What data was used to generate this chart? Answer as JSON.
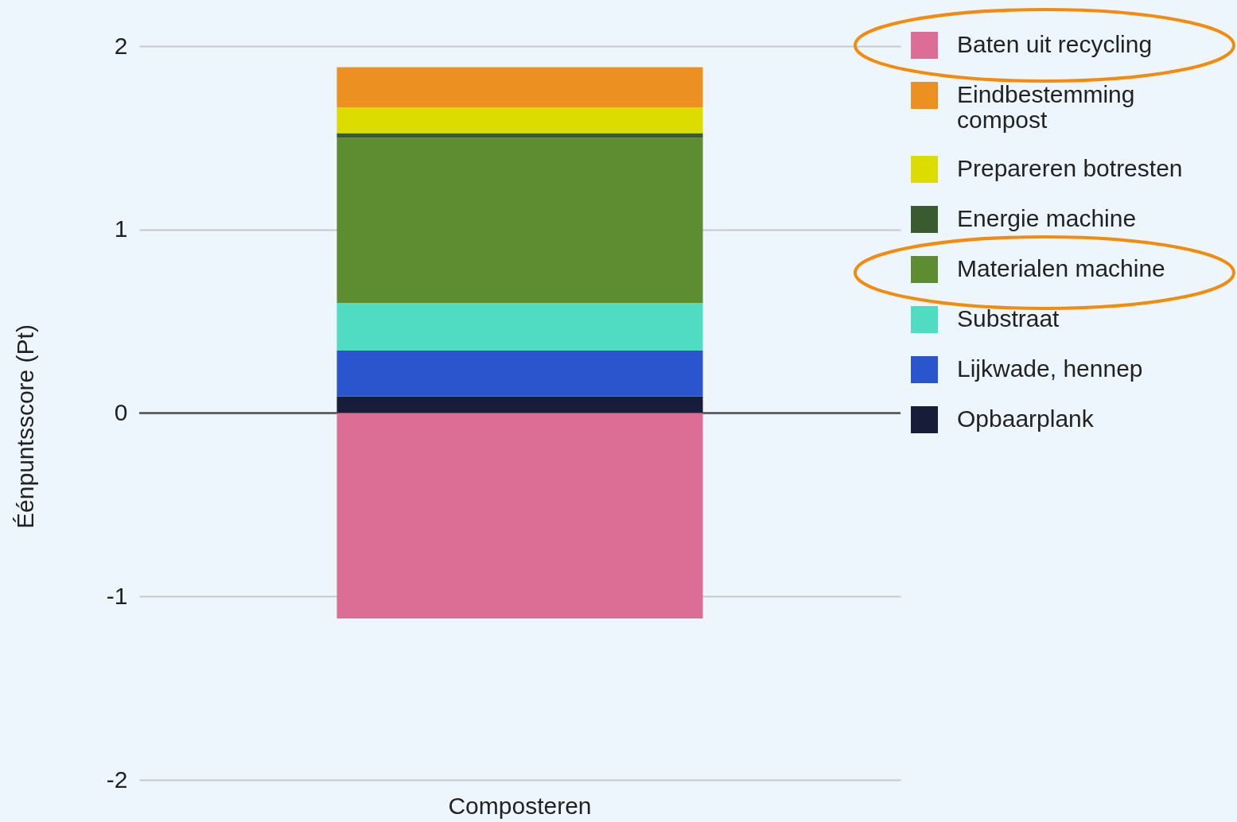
{
  "chart_data": {
    "type": "bar",
    "stacked": true,
    "categories": [
      "Composteren"
    ],
    "ylabel": "Éénpuntsscore (Pt)",
    "series": [
      {
        "name": "Opbaarplank",
        "color": "#171c38",
        "values": [
          0.09
        ]
      },
      {
        "name": "Lijkwade, hennep",
        "color": "#2b55cc",
        "values": [
          0.25
        ]
      },
      {
        "name": "Substraat",
        "color": "#50dbc3",
        "values": [
          0.26
        ]
      },
      {
        "name": "Materialen machine",
        "color": "#5e8c31",
        "values": [
          0.9
        ]
      },
      {
        "name": "Energie machine",
        "color": "#3a5a30",
        "values": [
          0.025
        ]
      },
      {
        "name": "Prepareren botresten",
        "color": "#dcdc00",
        "values": [
          0.14
        ]
      },
      {
        "name": "Eindbestemming compost",
        "color": "#ec9022",
        "values": [
          0.22
        ]
      },
      {
        "name": "Baten uit recycling",
        "color": "#dc6e96",
        "values": [
          -1.12
        ]
      }
    ],
    "ylim": [
      -2,
      2
    ],
    "yticks": [
      -2,
      -1,
      0,
      1,
      2
    ],
    "grid": "y",
    "legend": "top right",
    "ref_lines": [
      {
        "axis": "y",
        "value": 0,
        "color": "#333333"
      }
    ]
  }
}
